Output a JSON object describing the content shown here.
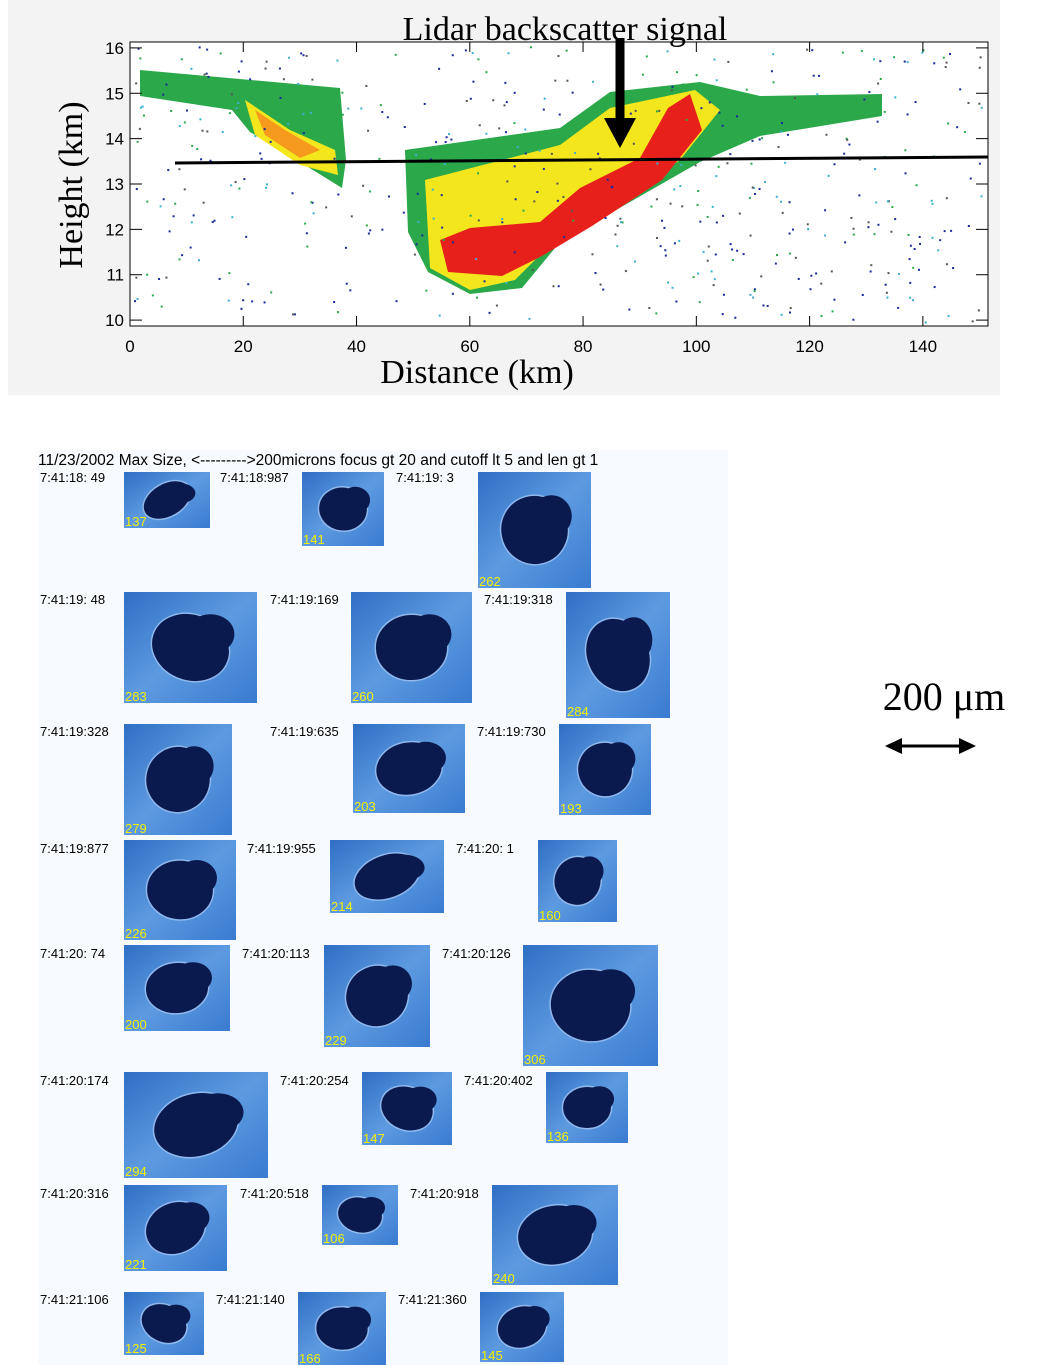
{
  "lidar": {
    "title": "Lidar backscatter signal",
    "xlabel": "Distance (km)",
    "ylabel": "Height (km)",
    "xlim": [
      0,
      151.5
    ],
    "ylim": [
      9.87,
      16.13
    ],
    "xticks": [
      0,
      20,
      40,
      60,
      80,
      100,
      120,
      140
    ],
    "yticks": [
      10,
      11,
      12,
      13,
      14,
      15,
      16
    ]
  },
  "particles": {
    "header": "11/23/2002 Max Size, <--------->200microns focus gt 20 and cutoff lt 5 and len gt 1",
    "items": [
      {
        "time": "7:41:18: 49",
        "size": 137
      },
      {
        "time": "7:41:18:987",
        "size": 141
      },
      {
        "time": "7:41:19:  3",
        "size": 262
      },
      {
        "time": "7:41:19: 48",
        "size": 283
      },
      {
        "time": "7:41:19:169",
        "size": 260
      },
      {
        "time": "7:41:19:318",
        "size": 284
      },
      {
        "time": "7:41:19:328",
        "size": 279
      },
      {
        "time": "7:41:19:635",
        "size": 203
      },
      {
        "time": "7:41:19:730",
        "size": 193
      },
      {
        "time": "7:41:19:877",
        "size": 226
      },
      {
        "time": "7:41:19:955",
        "size": 214
      },
      {
        "time": "7:41:20:  1",
        "size": 160
      },
      {
        "time": "7:41:20: 74",
        "size": 200
      },
      {
        "time": "7:41:20:113",
        "size": 229
      },
      {
        "time": "7:41:20:126",
        "size": 306
      },
      {
        "time": "7:41:20:174",
        "size": 294
      },
      {
        "time": "7:41:20:254",
        "size": 147
      },
      {
        "time": "7:41:20:402",
        "size": 136
      },
      {
        "time": "7:41:20:316",
        "size": 221
      },
      {
        "time": "7:41:20:518",
        "size": 106
      },
      {
        "time": "7:41:20:918",
        "size": 240
      },
      {
        "time": "7:41:21:106",
        "size": 125
      },
      {
        "time": "7:41:21:140",
        "size": 166
      },
      {
        "time": "7:41:21:360",
        "size": 145
      }
    ]
  },
  "scale": {
    "label": "200 μm"
  }
}
